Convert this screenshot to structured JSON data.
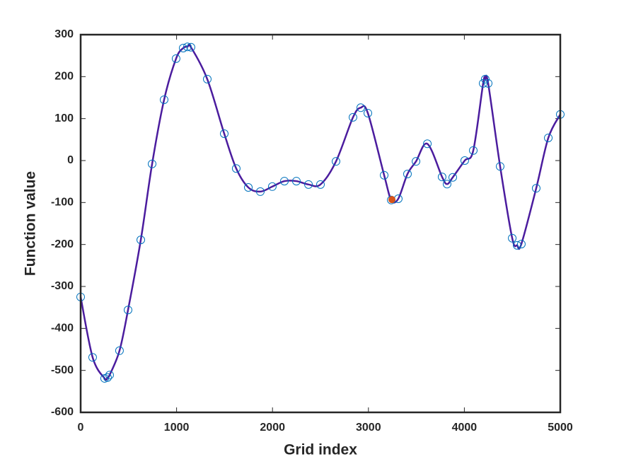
{
  "chart_data": {
    "type": "line",
    "xlabel": "Grid index",
    "ylabel": "Function value",
    "x": [
      0,
      125,
      250,
      280,
      302,
      405,
      494,
      627,
      745,
      870,
      995,
      1069,
      1113,
      1150,
      1320,
      1497,
      1622,
      1748,
      1873,
      1998,
      2124,
      2249,
      2375,
      2500,
      2662,
      2839,
      2920,
      2994,
      3164,
      3238,
      3311,
      3407,
      3496,
      3614,
      3768,
      3820,
      3879,
      4004,
      4093,
      4196,
      4218,
      4248,
      4373,
      4499,
      4550,
      4594,
      4749,
      4875,
      5000
    ],
    "series": [
      {
        "color": "#4b1c9e",
        "marker_color": "#0072bd",
        "values": [
          -325,
          -469,
          -519,
          -517,
          -511,
          -453,
          -356,
          -189,
          -8,
          145,
          243,
          268,
          271,
          270,
          194,
          64,
          -19,
          -64,
          -74,
          -62,
          -49,
          -49,
          -57,
          -57,
          -2,
          103,
          126,
          113,
          -35,
          -94,
          -91,
          -32,
          -2,
          40,
          -39,
          -56,
          -40,
          0,
          24,
          184,
          194,
          184,
          -14,
          -185,
          -202,
          -199,
          -66,
          54,
          110
        ]
      }
    ],
    "highlight": {
      "x": 3245,
      "y": -93,
      "color": "#d95319"
    },
    "xlim": [
      0,
      5000
    ],
    "xticks": [
      0,
      1000,
      2000,
      3000,
      4000,
      5000
    ],
    "ylim": [
      -600,
      300
    ],
    "yticks": [
      -600,
      -500,
      -400,
      -300,
      -200,
      -100,
      0,
      100,
      200,
      300
    ]
  }
}
